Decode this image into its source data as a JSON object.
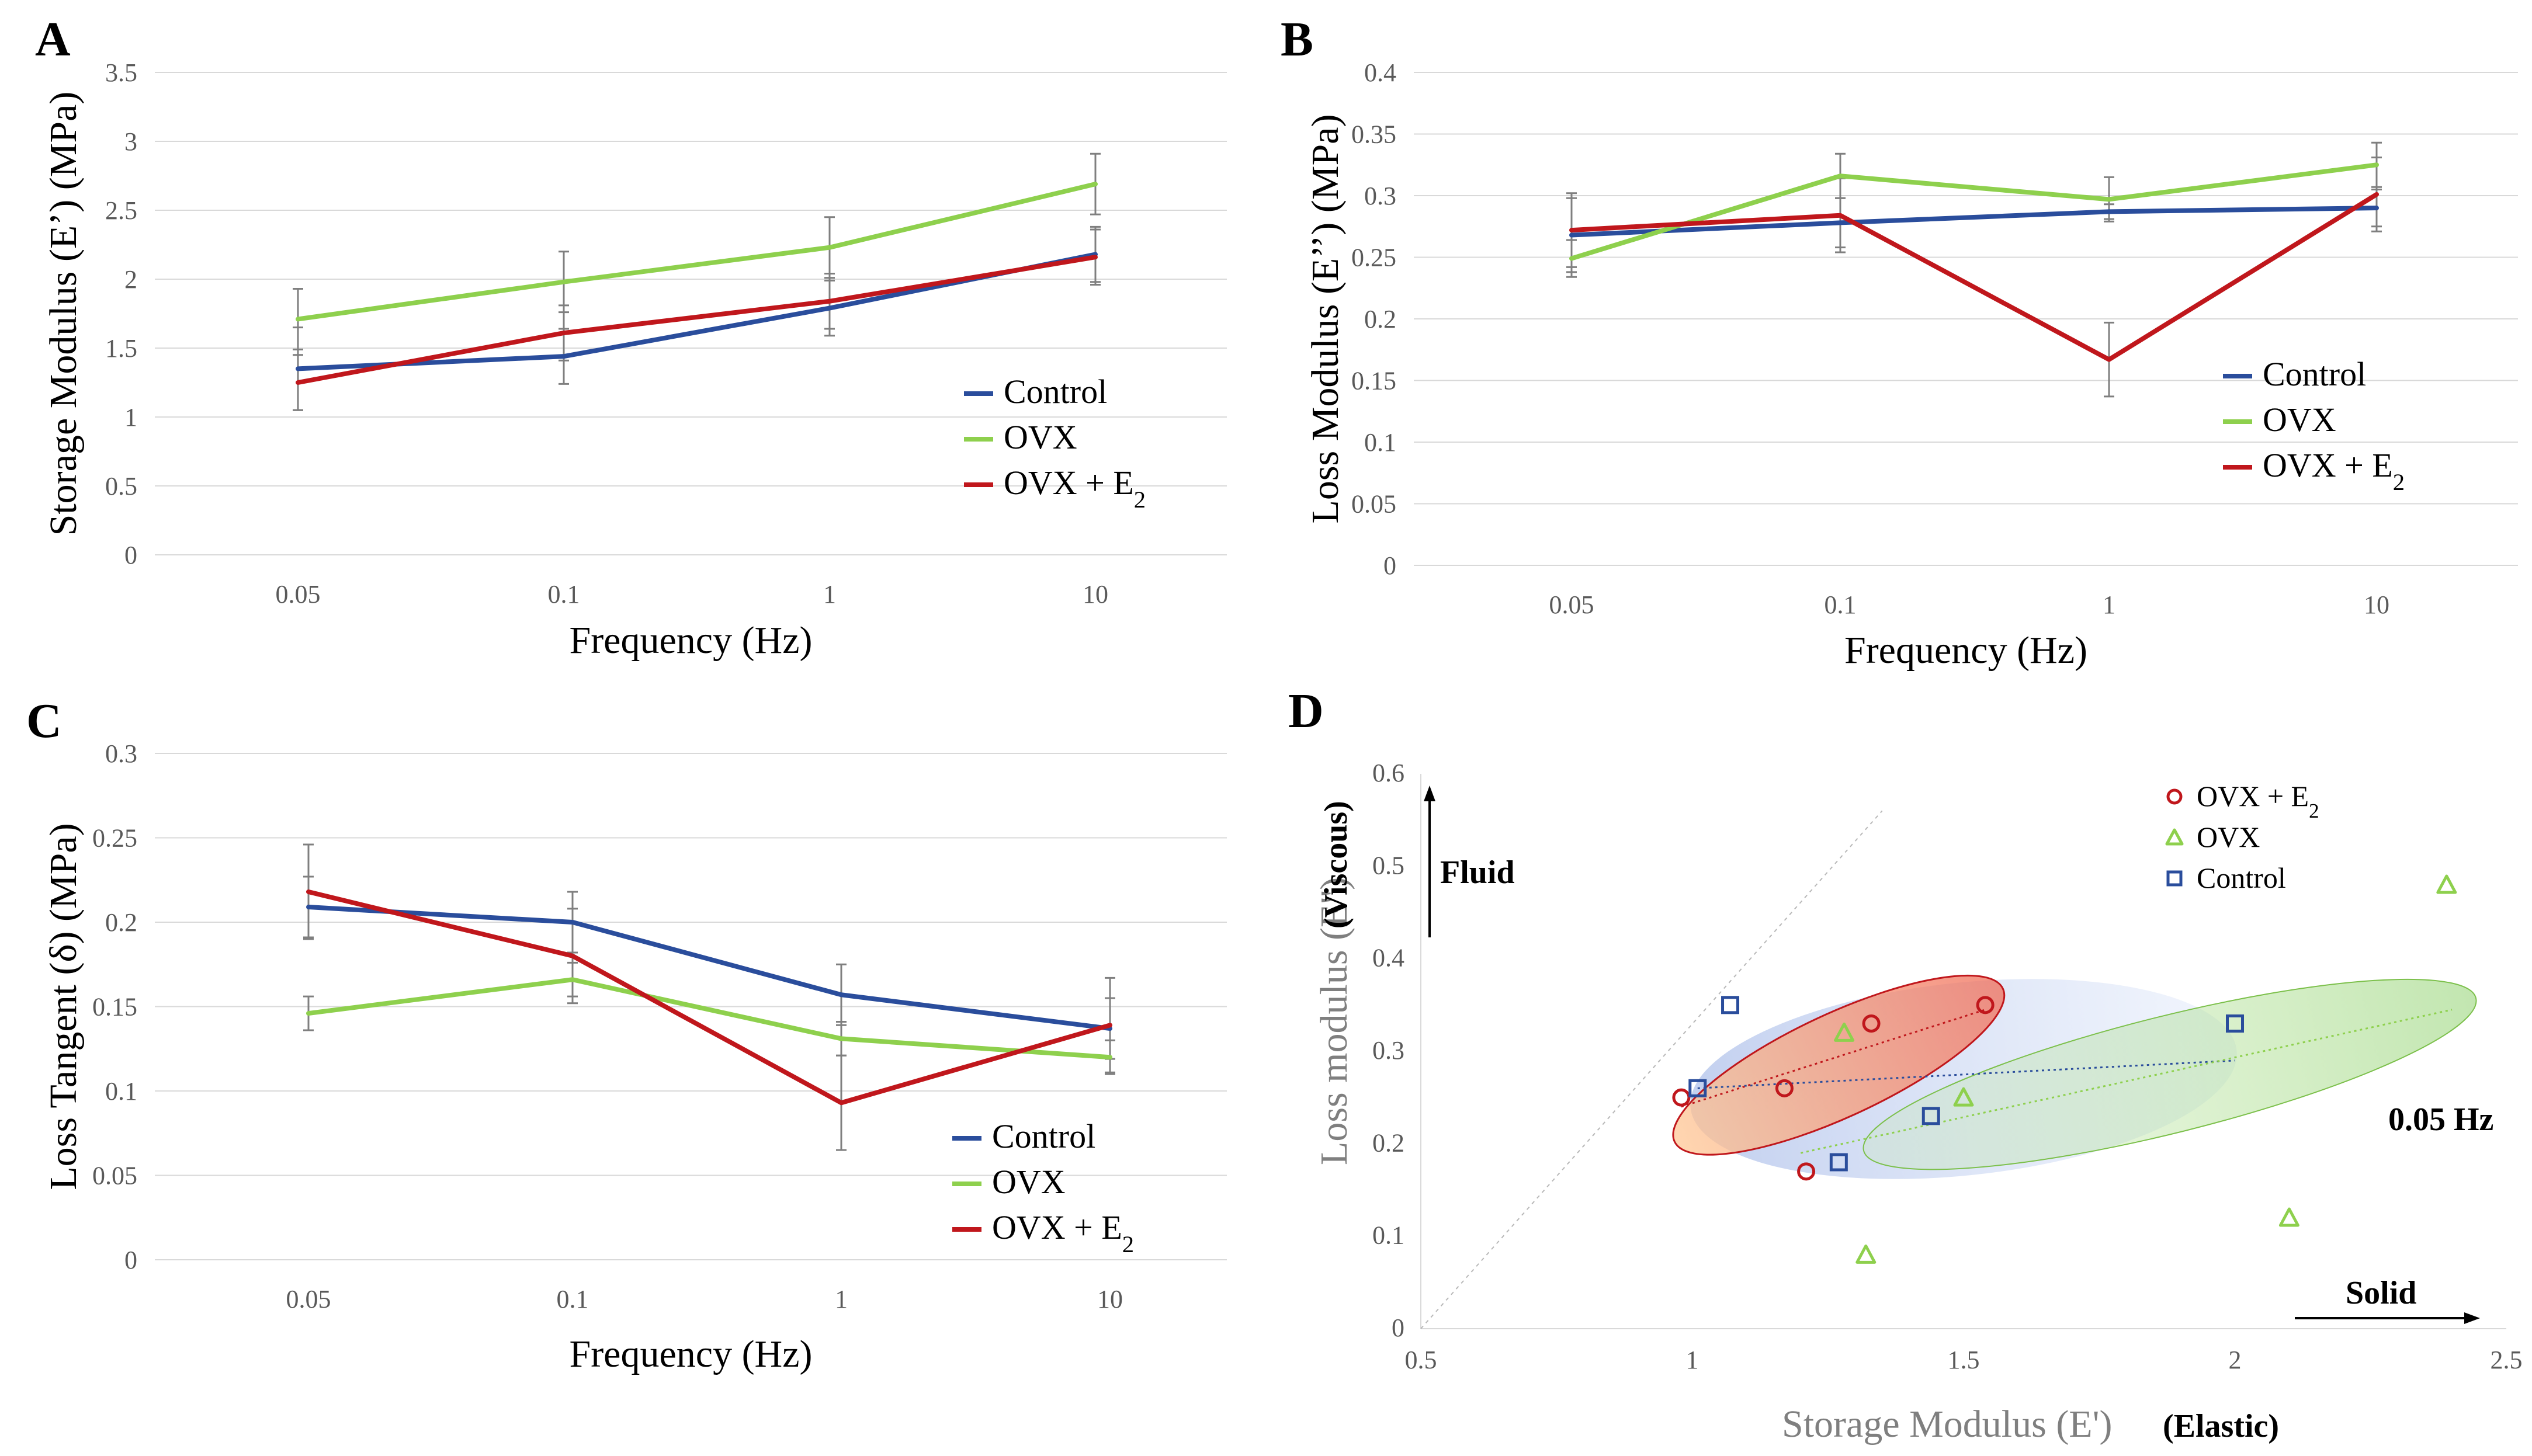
{
  "colors": {
    "control": "#2a4d9c",
    "ovx": "#8ed04d",
    "ovx_e2": "#c0171c",
    "grid": "#d9d9d9",
    "tick": "#595959"
  },
  "chart_data": [
    {
      "panel": "A",
      "type": "line",
      "xlabel": "Frequency (Hz)",
      "ylabel": "Storage Modulus (E’) (MPa)",
      "categories": [
        "0.05",
        "0.1",
        "1",
        "10"
      ],
      "yticks": [
        "0",
        "0.5",
        "1",
        "1.5",
        "2",
        "2.5",
        "3",
        "3.5"
      ],
      "ylim": [
        0,
        3.5
      ],
      "legend_position": "lower-right",
      "series": [
        {
          "name": "Control",
          "key": "control",
          "values": [
            1.35,
            1.44,
            1.79,
            2.18
          ],
          "errors": [
            0.3,
            0.2,
            0.2,
            0.2
          ]
        },
        {
          "name": "OVX",
          "key": "ovx",
          "values": [
            1.71,
            1.98,
            2.23,
            2.69
          ],
          "errors": [
            0.22,
            0.22,
            0.22,
            0.22
          ]
        },
        {
          "name": "OVX + E",
          "sub": "2",
          "key": "ovx_e2",
          "values": [
            1.25,
            1.61,
            1.84,
            2.16
          ],
          "errors": [
            0.2,
            0.2,
            0.2,
            0.2
          ]
        }
      ]
    },
    {
      "panel": "B",
      "type": "line",
      "xlabel": "Frequency (Hz)",
      "ylabel": "Loss Modulus (E’’) (MPa)",
      "categories": [
        "0.05",
        "0.1",
        "1",
        "10"
      ],
      "yticks": [
        "0",
        "0.05",
        "0.1",
        "0.15",
        "0.2",
        "0.25",
        "0.3",
        "0.35",
        "0.4"
      ],
      "ylim": [
        0,
        0.4
      ],
      "legend_position": "middle-right",
      "series": [
        {
          "name": "Control",
          "key": "control",
          "values": [
            0.268,
            0.278,
            0.287,
            0.29
          ],
          "errors": [
            0.03,
            0.02,
            0.006,
            0.015
          ]
        },
        {
          "name": "OVX",
          "key": "ovx",
          "values": [
            0.249,
            0.316,
            0.297,
            0.325
          ],
          "errors": [
            0.015,
            0.018,
            0.018,
            0.018
          ]
        },
        {
          "name": "OVX + E",
          "sub": "2",
          "key": "ovx_e2",
          "values": [
            0.272,
            0.284,
            0.167,
            0.301
          ],
          "errors": [
            0.03,
            0.03,
            0.03,
            0.03
          ]
        }
      ]
    },
    {
      "panel": "C",
      "type": "line",
      "xlabel": "Frequency (Hz)",
      "ylabel": "Loss Tangent (δ) (MPa)",
      "categories": [
        "0.05",
        "0.1",
        "1",
        "10"
      ],
      "yticks": [
        "0",
        "0.05",
        "0.1",
        "0.15",
        "0.2",
        "0.25",
        "0.3"
      ],
      "ylim": [
        0,
        0.3
      ],
      "legend_position": "lower-right",
      "series": [
        {
          "name": "Control",
          "key": "control",
          "values": [
            0.209,
            0.2,
            0.157,
            0.137
          ],
          "errors": [
            0.018,
            0.018,
            0.018,
            0.018
          ]
        },
        {
          "name": "OVX",
          "key": "ovx",
          "values": [
            0.146,
            0.166,
            0.131,
            0.12
          ],
          "errors": [
            0.01,
            0.01,
            0.01,
            0.01
          ]
        },
        {
          "name": "OVX + E",
          "sub": "2",
          "key": "ovx_e2",
          "values": [
            0.218,
            0.18,
            0.093,
            0.139
          ],
          "errors": [
            0.028,
            0.028,
            0.028,
            0.028
          ]
        }
      ]
    },
    {
      "panel": "D",
      "type": "scatter",
      "xlabel": "Storage Modulus (E')",
      "xlabel_note": "(Elastic)",
      "ylabel": "Loss modulus (E'')",
      "ylabel_note": "(Viscous)",
      "xticks": [
        "0.5",
        "1",
        "1.5",
        "2",
        "2.5"
      ],
      "yticks": [
        "0",
        "0.1",
        "0.2",
        "0.3",
        "0.4",
        "0.5",
        "0.6"
      ],
      "xlim": [
        0.5,
        2.5
      ],
      "ylim": [
        0,
        0.6
      ],
      "legend_position": "top-right",
      "annotations": {
        "fluid": "Fluid",
        "solid": "Solid",
        "freq": "0.05 Hz"
      },
      "series": [
        {
          "name": "OVX + E",
          "sub": "2",
          "key": "ovx_e2",
          "marker": "circle",
          "points": [
            [
              0.98,
              0.25
            ],
            [
              1.17,
              0.26
            ],
            [
              1.21,
              0.17
            ],
            [
              1.33,
              0.33
            ],
            [
              1.54,
              0.35
            ]
          ]
        },
        {
          "name": "OVX",
          "key": "ovx",
          "marker": "triangle",
          "points": [
            [
              1.28,
              0.32
            ],
            [
              1.32,
              0.08
            ],
            [
              1.5,
              0.25
            ],
            [
              2.1,
              0.12
            ],
            [
              2.39,
              0.48
            ]
          ]
        },
        {
          "name": "Control",
          "key": "control",
          "marker": "square",
          "points": [
            [
              1.01,
              0.26
            ],
            [
              1.07,
              0.35
            ],
            [
              1.27,
              0.18
            ],
            [
              1.44,
              0.23
            ],
            [
              2.0,
              0.33
            ]
          ]
        }
      ]
    }
  ]
}
